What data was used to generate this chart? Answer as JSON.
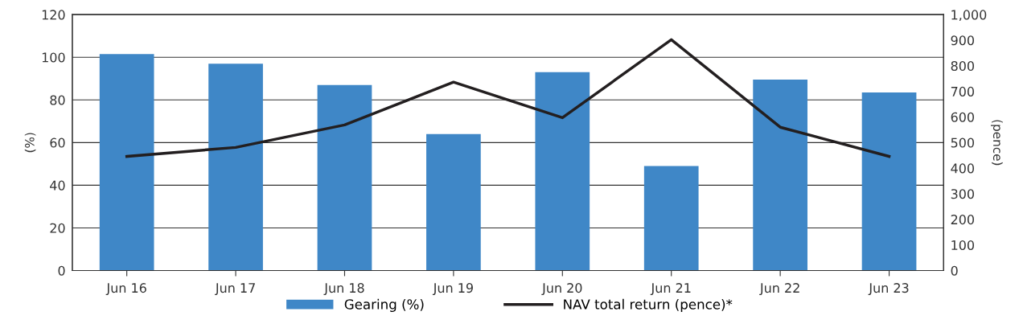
{
  "chart_data": {
    "type": "bar",
    "categories": [
      "Jun 16",
      "Jun 17",
      "Jun 18",
      "Jun 19",
      "Jun 20",
      "Jun 21",
      "Jun 22",
      "Jun 23"
    ],
    "ylabel": "(%)",
    "y2label": "(pence)",
    "ylim": [
      0,
      120
    ],
    "yticks": [
      0,
      20,
      40,
      60,
      80,
      100,
      120
    ],
    "y2lim": [
      0,
      1000
    ],
    "y2ticks": [
      0,
      100,
      200,
      300,
      400,
      500,
      600,
      700,
      800,
      900,
      {
        "value": 1000,
        "label": "1,000"
      }
    ],
    "grid": "y",
    "legend": "bottom",
    "series": [
      {
        "name": "Gearing (%)",
        "color": "#3f87c7",
        "values": [
          101.5,
          97,
          87,
          64,
          93,
          49,
          89.5,
          83.5
        ]
      },
      {
        "name": "NAV total return (pence)*",
        "type": "line",
        "axis": "y2",
        "color": "#231f20",
        "values": [
          446,
          481,
          569,
          736,
          597,
          902,
          560,
          446
        ]
      }
    ]
  }
}
